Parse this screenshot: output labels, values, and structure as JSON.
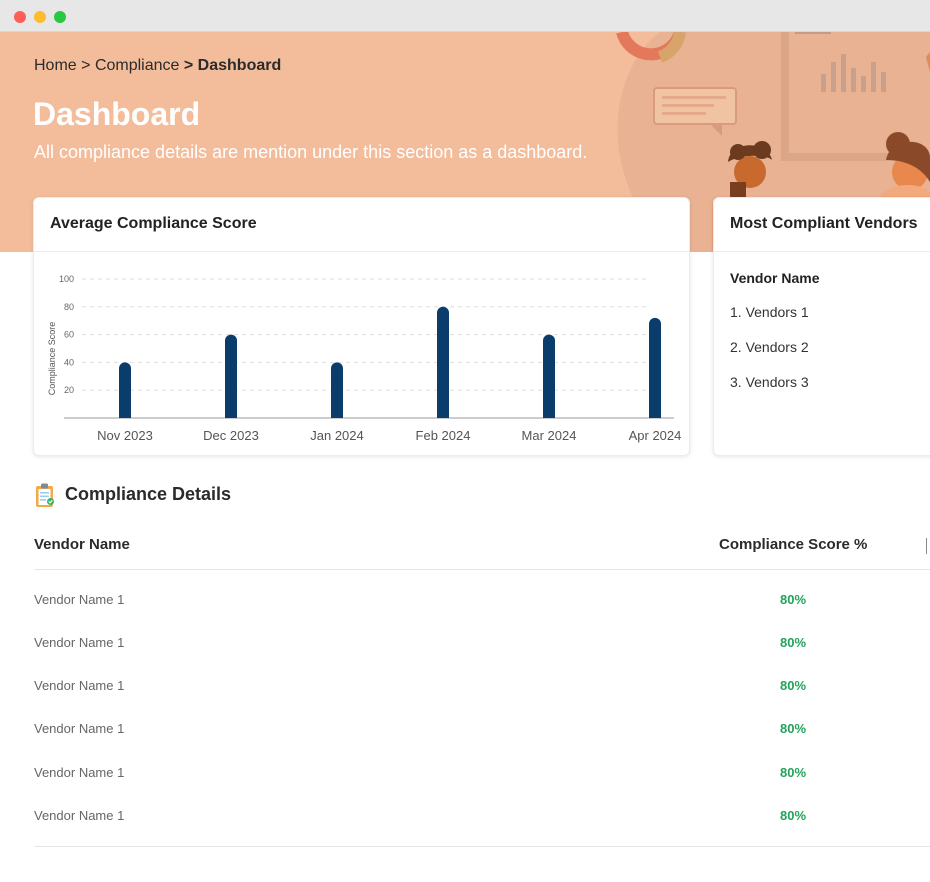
{
  "breadcrumb": {
    "home": "Home",
    "compliance": "Compliance",
    "current": "Dashboard",
    "sep": ">"
  },
  "page": {
    "title": "Dashboard",
    "subtitle": "All compliance details are mention under this section as a dashboard."
  },
  "score_card": {
    "title": "Average Compliance Score"
  },
  "chart_data": {
    "type": "bar",
    "title": "Average Compliance Score",
    "ylabel": "Compliance Score",
    "xlabel": "",
    "categories": [
      "Nov 2023",
      "Dec 2023",
      "Jan 2024",
      "Feb 2024",
      "Mar 2024",
      "Apr 2024"
    ],
    "values": [
      40,
      60,
      40,
      80,
      60,
      72
    ],
    "yticks": [
      20,
      40,
      60,
      80,
      100
    ],
    "ylim": [
      0,
      100
    ],
    "grid": true,
    "bar_color": "#0a3d6b"
  },
  "vendors_card": {
    "title": "Most Compliant Vendors",
    "column_header": "Vendor Name",
    "items": [
      "1. Vendors 1",
      "2. Vendors 2",
      "3. Vendors 3"
    ]
  },
  "details": {
    "title": "Compliance Details",
    "icon": "clipboard-icon",
    "columns": [
      "Vendor Name",
      "Compliance Score %"
    ],
    "rows": [
      {
        "vendor": "Vendor Name 1",
        "score": "80%"
      },
      {
        "vendor": "Vendor Name 1",
        "score": "80%"
      },
      {
        "vendor": "Vendor Name 1",
        "score": "80%"
      },
      {
        "vendor": "Vendor Name 1",
        "score": "80%"
      },
      {
        "vendor": "Vendor Name 1",
        "score": "80%"
      },
      {
        "vendor": "Vendor Name 1",
        "score": "80%"
      }
    ]
  },
  "colors": {
    "hero": "#f3bd9b",
    "accent": "#0a3d6b",
    "positive": "#22a35a"
  }
}
